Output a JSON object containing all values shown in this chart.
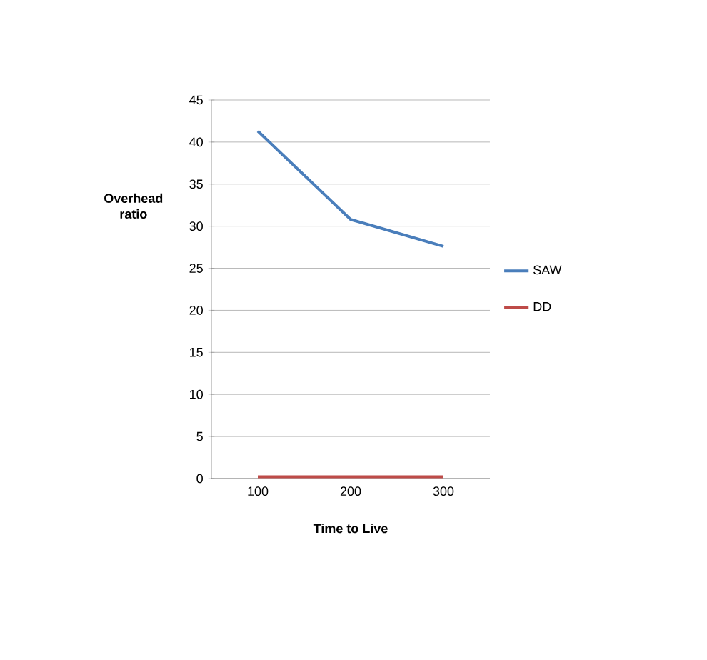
{
  "chart_data": {
    "type": "line",
    "xlabel": "Time to Live",
    "ylabel": "Overhead ratio",
    "categories": [
      "100",
      "200",
      "300"
    ],
    "series": [
      {
        "name": "SAW",
        "color": "#4a7ebb",
        "values": [
          41.3,
          30.8,
          27.6
        ]
      },
      {
        "name": "DD",
        "color": "#be4b48",
        "values": [
          0.2,
          0.2,
          0.2
        ]
      }
    ],
    "ylim": [
      0,
      45
    ],
    "yticks": [
      0,
      5,
      10,
      15,
      20,
      25,
      30,
      35,
      40,
      45
    ],
    "grid": "y",
    "legend": "right",
    "marker": "none",
    "line_style": "solid"
  }
}
